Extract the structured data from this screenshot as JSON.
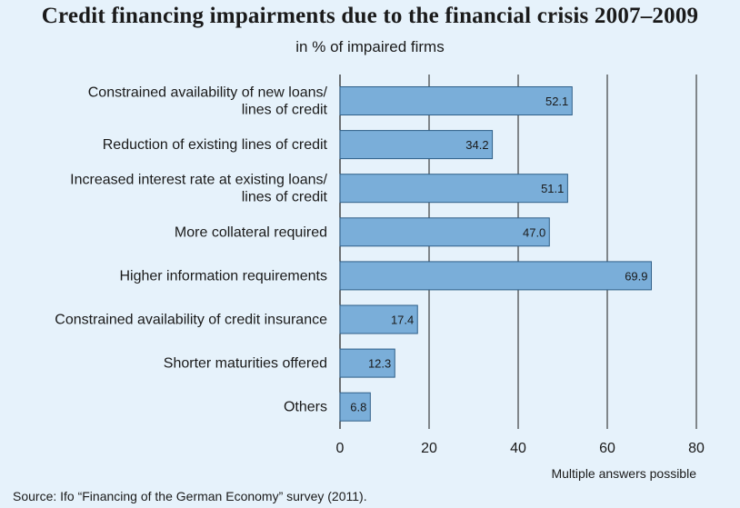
{
  "title": "Credit financing impairments due to the financial crisis 2007–2009",
  "subtitle": "in % of impaired firms",
  "note": "Multiple answers possible",
  "source": "Source: Ifo “Financing of the German Economy” survey (2011).",
  "colors": {
    "background": "#e6f2fb",
    "bar_fill": "#7aaed9",
    "bar_stroke": "#2f5f88",
    "grid": "#1a1a1a"
  },
  "chart_data": {
    "type": "bar",
    "orientation": "horizontal",
    "categories": [
      [
        "Constrained availability of new loans/",
        "lines of credit"
      ],
      [
        "Reduction of existing lines of credit"
      ],
      [
        "Increased interest rate at existing loans/",
        "lines of credit"
      ],
      [
        "More collateral required"
      ],
      [
        "Higher information requirements"
      ],
      [
        "Constrained availability of credit insurance"
      ],
      [
        "Shorter maturities offered"
      ],
      [
        "Others"
      ]
    ],
    "values": [
      52.1,
      34.2,
      51.1,
      47.0,
      69.9,
      17.4,
      12.3,
      6.8
    ],
    "value_labels": [
      "52.1",
      "34.2",
      "51.1",
      "47.0",
      "69.9",
      "17.4",
      "12.3",
      "6.8"
    ],
    "xlim": [
      0,
      80
    ],
    "xticks": [
      0,
      20,
      40,
      60,
      80
    ],
    "grid": true,
    "legend": "none"
  }
}
